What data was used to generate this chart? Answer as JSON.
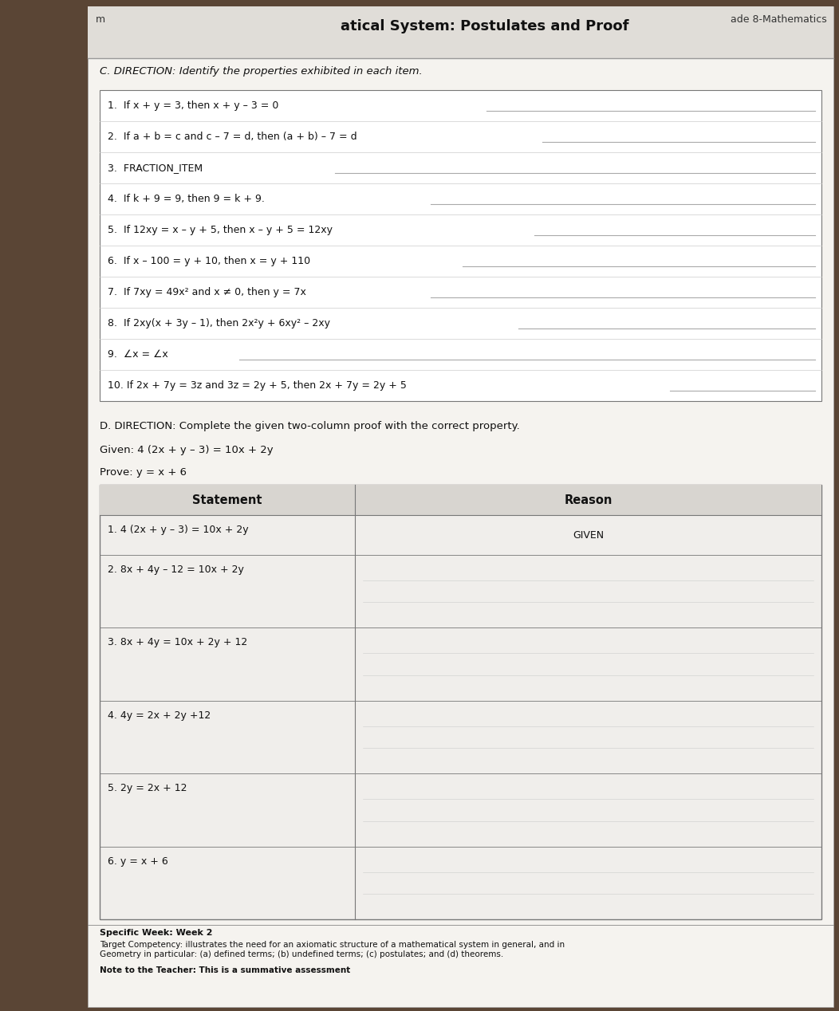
{
  "title": "atical System: Postulates and Proof",
  "title_prefix": "m",
  "subtitle_right": "ade 8-Mathematics",
  "section_c_header": "C. DIRECTION: Identify the properties exhibited in each item.",
  "items_c": [
    "1.  If x + y = 3, then x + y – 3 = 0",
    "2.  If a + b = c and c – 7 = d, then (a + b) – 7 = d",
    "3.  FRACTION_ITEM",
    "4.  If k + 9 = 9, then 9 = k + 9.",
    "5.  If 12xy = x – y + 5, then x – y + 5 = 12xy",
    "6.  If x – 100 = y + 10, then x = y + 110",
    "7.  If 7xy = 49x² and x ≠ 0, then y = 7x",
    "8.  If 2xy(x + 3y – 1), then 2x²y + 6xy² – 2xy",
    "9.  ∠x = ∠x",
    "10. If 2x + 7y = 3z and 3z = 2y + 5, then 2x + 7y = 2y + 5"
  ],
  "line_starts": [
    5.0,
    5.7,
    3.1,
    4.3,
    5.6,
    4.7,
    4.3,
    5.4,
    1.9,
    7.3
  ],
  "section_d_header": "D. DIRECTION: Complete the given two-column proof with the correct property.",
  "given": "Given: 4 (2x + y – 3) = 10x + 2y",
  "prove": "Prove: y = x + 6",
  "table_headers": [
    "Statement",
    "Reason"
  ],
  "table_rows": [
    [
      "1. 4 (2x + y – 3) = 10x + 2y",
      "GIVEN"
    ],
    [
      "2. 8x + 4y – 12 = 10x + 2y",
      ""
    ],
    [
      "3. 8x + 4y = 10x + 2y + 12",
      ""
    ],
    [
      "4. 4y = 2x + 2y +12",
      ""
    ],
    [
      "5. 2y = 2x + 12",
      ""
    ],
    [
      "6. y = x + 6",
      ""
    ]
  ],
  "footer_week": "Specific Week: Week 2",
  "footer_competency": "Target Competency: illustrates the need for an axiomatic structure of a mathematical system in general, and in\nGeometry in particular: (a) defined terms; (b) undefined terms; (c) postulates; and (d) theorems.",
  "footer_note": "Note to the Teacher: This is a summative assessment",
  "sidebar_color": "#5a4535",
  "page_bg": "#f5f3ef",
  "header_bg": "#e0ddd8",
  "box_bg": "#ffffff",
  "table_bg": "#f0eeeb",
  "text_color": "#111111",
  "line_color": "#aaaaaa",
  "sep_color": "#cccccc",
  "border_color": "#777777"
}
